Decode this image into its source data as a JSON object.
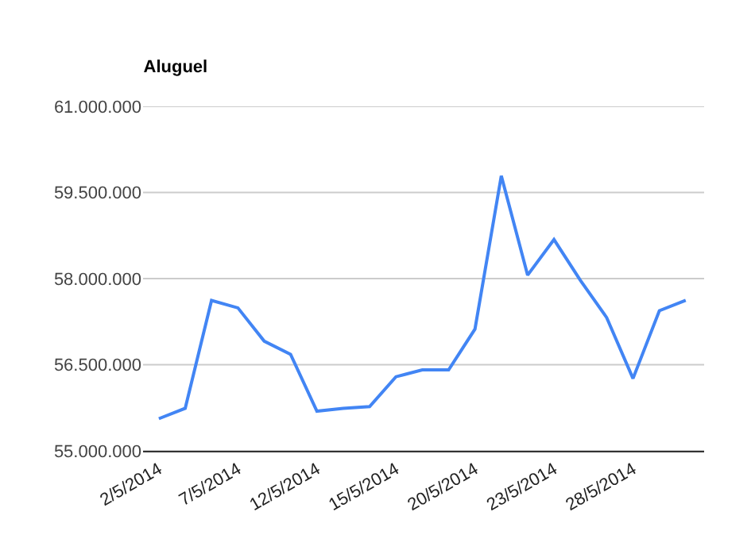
{
  "chart_data": {
    "type": "line",
    "title": "Aluguel",
    "categories": [
      "2/5/2014",
      null,
      null,
      "7/5/2014",
      null,
      null,
      "12/5/2014",
      null,
      null,
      "15/5/2014",
      null,
      null,
      "20/5/2014",
      null,
      null,
      "23/5/2014",
      null,
      null,
      "28/5/2014",
      null,
      null
    ],
    "series": [
      {
        "color": "#4285f4",
        "values": [
          55560000,
          55740000,
          57620000,
          57490000,
          56910000,
          56680000,
          55690000,
          55740000,
          55770000,
          56290000,
          56410000,
          56410000,
          57120000,
          59790000,
          58060000,
          58680000,
          57970000,
          57320000,
          56260000,
          57440000,
          57620000
        ]
      }
    ],
    "ylim": [
      55000000,
      61000000
    ],
    "yticks": [
      {
        "value": 55000000,
        "label": "55.000.000"
      },
      {
        "value": 56500000,
        "label": "56.500.000"
      },
      {
        "value": 58000000,
        "label": "58.000.000"
      },
      {
        "value": 59500000,
        "label": "59.500.000"
      },
      {
        "value": 61000000,
        "label": "61.000.000"
      }
    ],
    "grid": "y",
    "marker": "none",
    "line_style": "solid"
  }
}
